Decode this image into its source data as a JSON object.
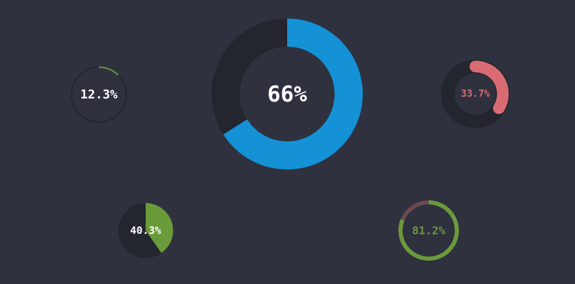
{
  "chart_data": [
    {
      "type": "donut",
      "values": [
        12.3
      ],
      "value_labels": [
        "12.3%"
      ],
      "color": "#6a9a3a",
      "track_color": "#23252f"
    },
    {
      "type": "donut",
      "values": [
        66
      ],
      "value_labels": [
        "66%"
      ],
      "color": "#1591d6",
      "track_color": "#23252f"
    },
    {
      "type": "donut",
      "values": [
        33.7
      ],
      "value_labels": [
        "33.7%"
      ],
      "color": "#d96b73",
      "track_color": "#23252f"
    },
    {
      "type": "pie",
      "values": [
        40.3
      ],
      "value_labels": [
        "40.3%"
      ],
      "color": "#6a9a3a",
      "track_color": "#23252f"
    },
    {
      "type": "donut",
      "values": [
        81.2
      ],
      "value_labels": [
        "81.2%"
      ],
      "color": "#6a9a3a",
      "track_color": "#6b4950"
    }
  ]
}
